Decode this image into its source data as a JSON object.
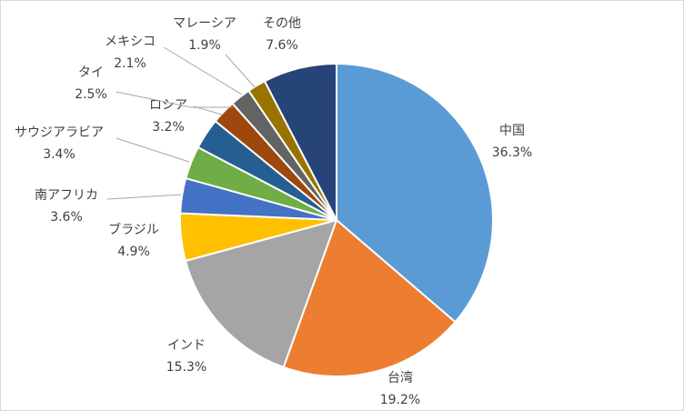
{
  "chart_data": {
    "type": "pie",
    "title": "",
    "legend": "none",
    "slices": [
      {
        "label": "中国",
        "value": 36.3,
        "display": "36.3%",
        "color": "#5B9BD5"
      },
      {
        "label": "台湾",
        "value": 19.2,
        "display": "19.2%",
        "color": "#ED7D31"
      },
      {
        "label": "インド",
        "value": 15.3,
        "display": "15.3%",
        "color": "#A5A5A5"
      },
      {
        "label": "ブラジル",
        "value": 4.9,
        "display": "4.9%",
        "color": "#FFC000"
      },
      {
        "label": "南アフリカ",
        "value": 3.6,
        "display": "3.6%",
        "color": "#4472C4"
      },
      {
        "label": "サウジアラビア",
        "value": 3.4,
        "display": "3.4%",
        "color": "#70AD47"
      },
      {
        "label": "ロシア",
        "value": 3.2,
        "display": "3.2%",
        "color": "#255E91"
      },
      {
        "label": "タイ",
        "value": 2.5,
        "display": "2.5%",
        "color": "#9E480E"
      },
      {
        "label": "メキシコ",
        "value": 2.1,
        "display": "2.1%",
        "color": "#636363"
      },
      {
        "label": "マレーシア",
        "value": 1.9,
        "display": "1.9%",
        "color": "#997300"
      },
      {
        "label": "その他",
        "value": 7.6,
        "display": "7.6%",
        "color": "#264478"
      }
    ]
  }
}
